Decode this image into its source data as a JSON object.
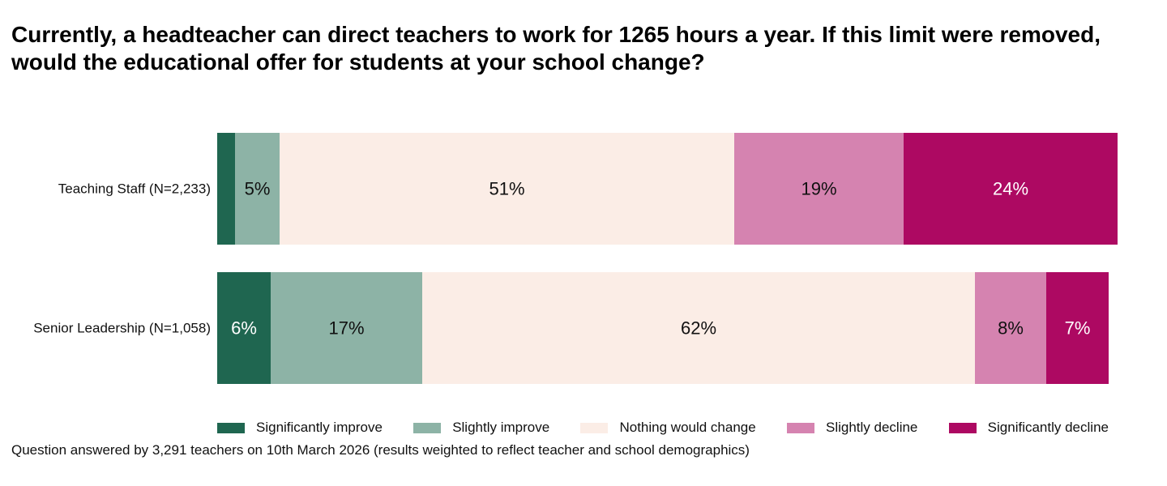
{
  "title": "Currently, a headteacher can direct teachers to work for 1265 hours a year. If this limit were removed, would the educational offer for students at your school change?",
  "footnote": "Question answered by 3,291 teachers on 10th March 2026 (results weighted to reflect teacher and school demographics)",
  "chart_data": {
    "type": "bar",
    "orientation": "horizontal",
    "stacked": true,
    "normalized": true,
    "categories": [
      "Teaching Staff (N=2,233)",
      "Senior Leadership (N=1,058)"
    ],
    "series": [
      {
        "name": "Significantly improve",
        "color": "#1f6650",
        "values": [
          2,
          6
        ],
        "labels": [
          "",
          "6%"
        ]
      },
      {
        "name": "Slightly improve",
        "color": "#8db3a6",
        "values": [
          5,
          17
        ],
        "labels": [
          "5%",
          "17%"
        ]
      },
      {
        "name": "Nothing would change",
        "color": "#fbede6",
        "values": [
          51,
          62
        ],
        "labels": [
          "51%",
          "62%"
        ]
      },
      {
        "name": "Slightly decline",
        "color": "#d583b0",
        "values": [
          19,
          8
        ],
        "labels": [
          "19%",
          "8%"
        ]
      },
      {
        "name": "Significantly decline",
        "color": "#ad0962",
        "values": [
          24,
          7
        ],
        "labels": [
          "24%",
          "7%"
        ]
      }
    ],
    "xlim": [
      0,
      100
    ],
    "legend_position": "bottom",
    "grid": false
  }
}
